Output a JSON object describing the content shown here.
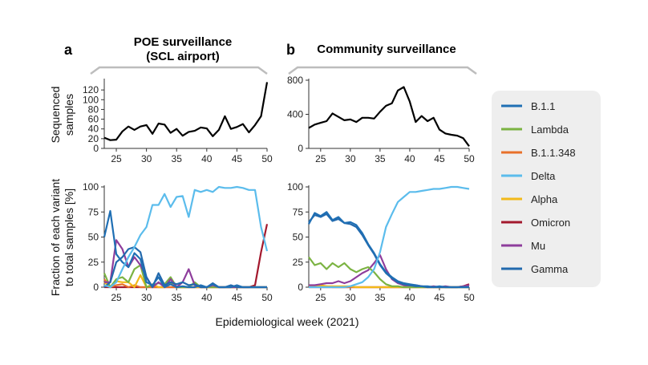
{
  "figure": {
    "panel_a": {
      "letter": "a",
      "title_line1": "POE surveillance",
      "title_line2": "(SCL airport)"
    },
    "panel_b": {
      "letter": "b",
      "title": "Community surveillance"
    },
    "ylabel_top_line1": "Sequenced",
    "ylabel_top_line2": "samples",
    "ylabel_bottom_line1": "Fraction of each variant",
    "ylabel_bottom_line2": "to total samples [%]",
    "xlabel": "Epidemiological week (2021)"
  },
  "legend": [
    {
      "name": "B.1.1",
      "color": "#1f6fb4"
    },
    {
      "name": "Lambda",
      "color": "#7bb342"
    },
    {
      "name": "B.1.1.348",
      "color": "#e8702a"
    },
    {
      "name": "Delta",
      "color": "#5bbcec"
    },
    {
      "name": "Alpha",
      "color": "#f2b91a"
    },
    {
      "name": "Omicron",
      "color": "#a3182d"
    },
    {
      "name": "Mu",
      "color": "#8e3d9c"
    },
    {
      "name": "Gamma",
      "color": "#2269ad"
    }
  ],
  "chart_data": [
    {
      "id": "a-top",
      "type": "line",
      "x": [
        23,
        24,
        25,
        26,
        27,
        28,
        29,
        30,
        31,
        32,
        33,
        34,
        35,
        36,
        37,
        38,
        39,
        40,
        41,
        42,
        43,
        44,
        45,
        46,
        47,
        48,
        49,
        50
      ],
      "xlim": [
        23,
        50
      ],
      "ylim": [
        0,
        140
      ],
      "xticks": [
        25,
        30,
        35,
        40,
        45,
        50
      ],
      "yticks": [
        0,
        20,
        40,
        60,
        80,
        100,
        120
      ],
      "series": [
        {
          "color": "#000000",
          "values": [
            22,
            17,
            18,
            35,
            45,
            38,
            45,
            48,
            30,
            51,
            49,
            32,
            40,
            26,
            34,
            36,
            43,
            41,
            25,
            38,
            66,
            40,
            44,
            50,
            33,
            48,
            66,
            136
          ]
        }
      ]
    },
    {
      "id": "b-top",
      "type": "line",
      "x": [
        23,
        24,
        25,
        26,
        27,
        28,
        29,
        30,
        31,
        32,
        33,
        34,
        35,
        36,
        37,
        38,
        39,
        40,
        41,
        42,
        43,
        44,
        45,
        46,
        47,
        48,
        49,
        50
      ],
      "xlim": [
        23,
        50
      ],
      "ylim": [
        0,
        800
      ],
      "xticks": [
        25,
        30,
        35,
        40,
        45,
        50
      ],
      "yticks": [
        0,
        400,
        800
      ],
      "series": [
        {
          "color": "#000000",
          "values": [
            240,
            280,
            300,
            320,
            410,
            370,
            330,
            340,
            310,
            360,
            360,
            350,
            430,
            500,
            530,
            680,
            720,
            550,
            310,
            380,
            320,
            360,
            220,
            175,
            160,
            150,
            120,
            25
          ]
        }
      ]
    },
    {
      "id": "a-bottom",
      "type": "line",
      "x": [
        23,
        24,
        25,
        26,
        27,
        28,
        29,
        30,
        31,
        32,
        33,
        34,
        35,
        36,
        37,
        38,
        39,
        40,
        41,
        42,
        43,
        44,
        45,
        46,
        47,
        48,
        49,
        50
      ],
      "xlim": [
        23,
        50
      ],
      "ylim": [
        0,
        100
      ],
      "xticks": [
        25,
        30,
        35,
        40,
        45,
        50
      ],
      "yticks": [
        0,
        25,
        50,
        75,
        100
      ],
      "series": [
        {
          "name": "Delta",
          "color": "#5bbcec",
          "values": [
            2,
            0,
            5,
            18,
            30,
            40,
            52,
            60,
            82,
            82,
            93,
            80,
            90,
            91,
            70,
            97,
            95,
            97,
            95,
            100,
            99,
            99,
            100,
            99,
            97,
            97,
            60,
            36
          ]
        },
        {
          "name": "B.1.1",
          "color": "#1f6fb4",
          "values": [
            50,
            76,
            33,
            25,
            20,
            34,
            28,
            5,
            2,
            10,
            0,
            3,
            0,
            1,
            0,
            0,
            2,
            0,
            3,
            0,
            0,
            0,
            2,
            0,
            0,
            0,
            0,
            0
          ]
        },
        {
          "name": "Gamma",
          "color": "#2269ad",
          "values": [
            0,
            5,
            25,
            30,
            38,
            40,
            35,
            10,
            0,
            14,
            2,
            5,
            3,
            5,
            2,
            3,
            0,
            0,
            4,
            0,
            0,
            2,
            0,
            0,
            0,
            0,
            0,
            0
          ]
        },
        {
          "name": "Mu",
          "color": "#8e3d9c",
          "values": [
            5,
            5,
            47,
            38,
            20,
            30,
            22,
            10,
            0,
            5,
            0,
            8,
            0,
            5,
            18,
            2,
            0,
            0,
            2,
            0,
            0,
            0,
            0,
            0,
            0,
            0,
            0,
            0
          ]
        },
        {
          "name": "Lambda",
          "color": "#7bb342",
          "values": [
            14,
            0,
            8,
            10,
            5,
            18,
            22,
            0,
            2,
            4,
            3,
            10,
            0,
            0,
            0,
            5,
            0,
            0,
            0,
            0,
            0,
            0,
            0,
            0,
            0,
            0,
            0,
            0
          ]
        },
        {
          "name": "Alpha",
          "color": "#f2b91a",
          "values": [
            5,
            0,
            6,
            5,
            5,
            0,
            12,
            0,
            3,
            0,
            0,
            5,
            0,
            0,
            0,
            0,
            0,
            0,
            0,
            0,
            0,
            0,
            0,
            0,
            0,
            0,
            0,
            0
          ]
        },
        {
          "name": "B.1.1.348",
          "color": "#e8702a",
          "values": [
            8,
            0,
            2,
            3,
            0,
            2,
            0,
            0,
            0,
            0,
            0,
            0,
            0,
            0,
            0,
            0,
            0,
            0,
            0,
            0,
            0,
            0,
            0,
            0,
            0,
            0,
            0,
            0
          ]
        },
        {
          "name": "Omicron",
          "color": "#a3182d",
          "values": [
            0,
            0,
            0,
            0,
            0,
            0,
            0,
            0,
            0,
            0,
            0,
            0,
            0,
            0,
            0,
            0,
            0,
            0,
            0,
            0,
            0,
            0,
            0,
            0,
            0,
            2,
            35,
            63
          ]
        }
      ]
    },
    {
      "id": "b-bottom",
      "type": "line",
      "x": [
        23,
        24,
        25,
        26,
        27,
        28,
        29,
        30,
        31,
        32,
        33,
        34,
        35,
        36,
        37,
        38,
        39,
        40,
        41,
        42,
        43,
        44,
        45,
        46,
        47,
        48,
        49,
        50
      ],
      "xlim": [
        23,
        50
      ],
      "ylim": [
        0,
        100
      ],
      "xticks": [
        25,
        30,
        35,
        40,
        45,
        50
      ],
      "yticks": [
        0,
        25,
        50,
        75,
        100
      ],
      "series": [
        {
          "name": "Delta",
          "color": "#5bbcec",
          "values": [
            0,
            0,
            0,
            0,
            0,
            0,
            0,
            1,
            3,
            5,
            10,
            18,
            35,
            60,
            73,
            85,
            90,
            95,
            95,
            96,
            97,
            98,
            98,
            99,
            100,
            100,
            99,
            98
          ]
        },
        {
          "name": "B.1.1",
          "color": "#1f6fb4",
          "values": [
            63,
            74,
            71,
            75,
            67,
            70,
            64,
            65,
            62,
            54,
            43,
            34,
            23,
            15,
            10,
            6,
            4,
            3,
            2,
            1,
            1,
            0,
            1,
            0,
            0,
            0,
            0,
            0
          ]
        },
        {
          "name": "Gamma",
          "color": "#2269ad",
          "values": [
            65,
            72,
            70,
            73,
            66,
            68,
            64,
            63,
            60,
            52,
            42,
            33,
            22,
            14,
            9,
            5,
            3,
            2,
            1,
            1,
            0,
            0,
            0,
            0,
            0,
            0,
            0,
            0
          ]
        },
        {
          "name": "Lambda",
          "color": "#7bb342",
          "values": [
            30,
            22,
            24,
            18,
            24,
            20,
            24,
            18,
            15,
            18,
            20,
            15,
            8,
            3,
            1,
            1,
            0,
            0,
            0,
            0,
            0,
            0,
            0,
            0,
            0,
            0,
            0,
            0
          ]
        },
        {
          "name": "Mu",
          "color": "#8e3d9c",
          "values": [
            2,
            2,
            3,
            4,
            4,
            6,
            4,
            6,
            10,
            14,
            17,
            24,
            32,
            18,
            8,
            4,
            2,
            1,
            2,
            1,
            0,
            1,
            0,
            1,
            0,
            0,
            1,
            2
          ]
        },
        {
          "name": "Alpha",
          "color": "#f2b91a",
          "values": [
            1,
            1,
            2,
            1,
            1,
            1,
            1,
            1,
            0,
            0,
            0,
            0,
            0,
            0,
            0,
            0,
            0,
            0,
            0,
            0,
            0,
            0,
            0,
            0,
            0,
            0,
            0,
            0
          ]
        },
        {
          "name": "B.1.1.348",
          "color": "#e8702a",
          "values": [
            0,
            1,
            0,
            1,
            0,
            0,
            0,
            0,
            0,
            0,
            0,
            0,
            0,
            0,
            0,
            0,
            0,
            0,
            0,
            0,
            0,
            0,
            0,
            0,
            0,
            0,
            0,
            0
          ]
        },
        {
          "name": "Omicron",
          "color": "#a3182d",
          "values": [
            0,
            0,
            0,
            0,
            0,
            0,
            0,
            0,
            0,
            0,
            0,
            0,
            0,
            0,
            0,
            0,
            0,
            0,
            0,
            0,
            0,
            0,
            0,
            0,
            0,
            0,
            1,
            3
          ]
        }
      ]
    }
  ]
}
